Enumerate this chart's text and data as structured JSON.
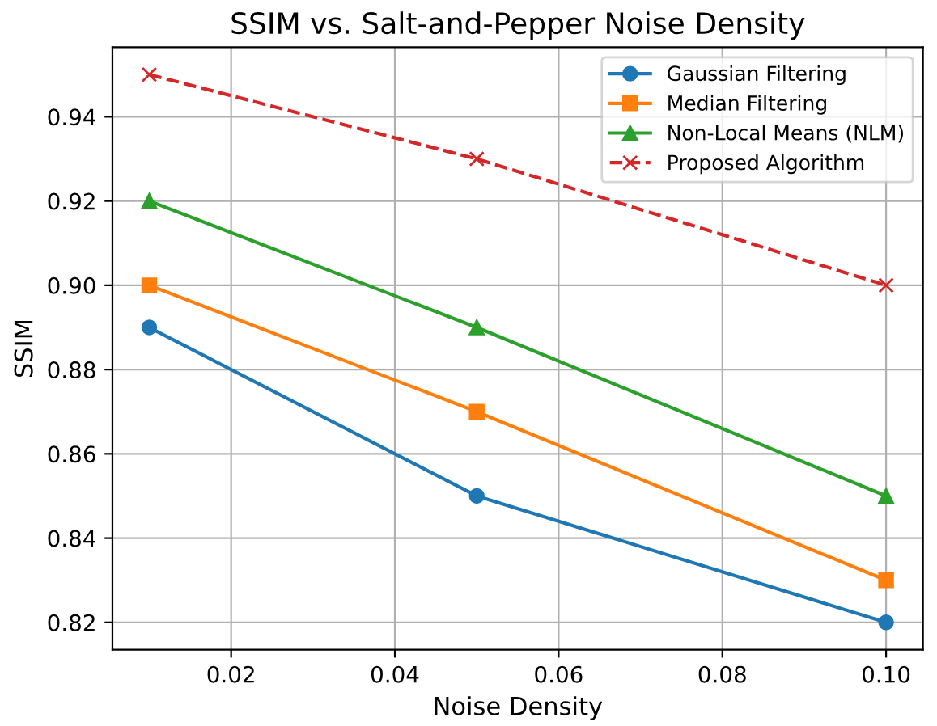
{
  "chart_data": {
    "type": "line",
    "title": "SSIM vs. Salt-and-Pepper Noise Density",
    "xlabel": "Noise Density",
    "ylabel": "SSIM",
    "x": [
      0.01,
      0.05,
      0.1
    ],
    "series": [
      {
        "name": "Gaussian Filtering",
        "color": "#1f77b4",
        "marker": "circle",
        "line_style": "solid",
        "values": [
          0.89,
          0.85,
          0.82
        ]
      },
      {
        "name": "Median Filtering",
        "color": "#ff7f0e",
        "marker": "square",
        "line_style": "solid",
        "values": [
          0.9,
          0.87,
          0.83
        ]
      },
      {
        "name": "Non-Local Means (NLM)",
        "color": "#2ca02c",
        "marker": "triangle",
        "line_style": "solid",
        "values": [
          0.92,
          0.89,
          0.85
        ]
      },
      {
        "name": "Proposed Algorithm",
        "color": "#d62728",
        "marker": "cross",
        "line_style": "dashed",
        "values": [
          0.95,
          0.93,
          0.9
        ]
      }
    ],
    "xlim": [
      0.0055,
      0.1045
    ],
    "ylim": [
      0.8135,
      0.9565
    ],
    "xticks": [
      {
        "value": 0.02,
        "label": "0.02"
      },
      {
        "value": 0.04,
        "label": "0.04"
      },
      {
        "value": 0.06,
        "label": "0.06"
      },
      {
        "value": 0.08,
        "label": "0.08"
      },
      {
        "value": 0.1,
        "label": "0.10"
      }
    ],
    "yticks": [
      {
        "value": 0.82,
        "label": "0.82"
      },
      {
        "value": 0.84,
        "label": "0.84"
      },
      {
        "value": 0.86,
        "label": "0.86"
      },
      {
        "value": 0.88,
        "label": "0.88"
      },
      {
        "value": 0.9,
        "label": "0.90"
      },
      {
        "value": 0.92,
        "label": "0.92"
      },
      {
        "value": 0.94,
        "label": "0.94"
      }
    ],
    "grid": true,
    "legend": "top right"
  }
}
